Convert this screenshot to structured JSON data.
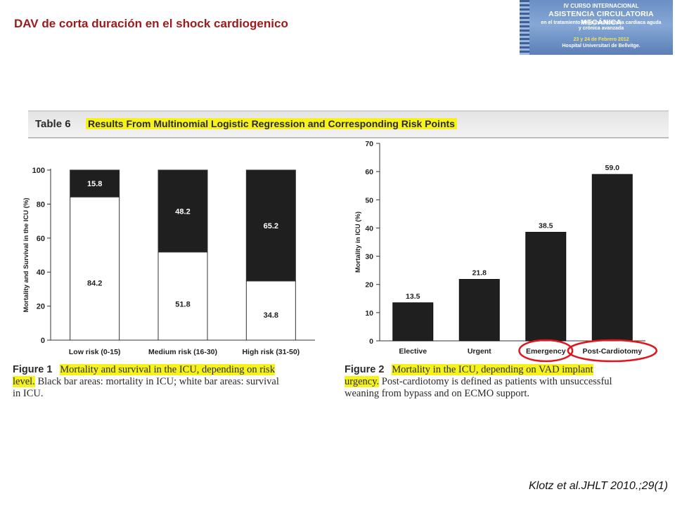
{
  "slide": {
    "title": "DAV de corta duración en el shock cardiogenico",
    "citation": "Klotz et al.JHLT 2010.;29(1)"
  },
  "banner": {
    "line1": "IV CURSO INTERNACIONAL",
    "line2": "ASISTENCIA CIRCULATORIA MECÁNICA",
    "line3": "en el tratamiento de la insuficiencia cardiaca aguda",
    "line4": "y crónica avanzada",
    "line5": "23 y 24 de Febrero 2012",
    "line6": "Hospital Universitari de Bellvitge."
  },
  "table_header": {
    "number": "Table 6",
    "title": "Results From Multinomial Logistic Regression and Corresponding Risk Points"
  },
  "figure1": {
    "label": "Figure 1",
    "caption_highlight_a": "Mortality and survival in the ICU, depending on risk",
    "caption_highlight_b": "level.",
    "caption_rest_a": " Black bar areas: mortality in ICU; white bar areas: survival",
    "caption_rest_b": "in ICU."
  },
  "figure2": {
    "label": "Figure 2",
    "caption_highlight_a": "Mortality in the ICU, depending on VAD implant",
    "caption_highlight_b": "urgency.",
    "caption_rest_a": " Post-cardiotomy is defined as patients with unsuccessful",
    "caption_rest_b": "weaning from bypass and on ECMO support."
  },
  "colors": {
    "title": "#9c1a1a",
    "highlight": "#f6f21a",
    "bar_dark": "#1f1f1f",
    "circle": "#e0161f"
  },
  "chart_data": [
    {
      "type": "bar",
      "stacked": true,
      "ylabel": "Mortality and Survival in the ICU (%)",
      "xlabel": "",
      "ylim": [
        0,
        100
      ],
      "yticks": [
        0,
        20,
        40,
        60,
        80,
        100
      ],
      "categories": [
        "Low risk (0-15)",
        "Medium risk (16-30)",
        "High risk (31-50)"
      ],
      "series": [
        {
          "name": "Survival",
          "color": "#ffffff",
          "values": [
            84.2,
            51.8,
            34.8
          ],
          "labels": [
            "84.2",
            "51.8",
            "34.8"
          ]
        },
        {
          "name": "Mortality",
          "color": "#1f1f1f",
          "values": [
            15.8,
            48.2,
            65.2
          ],
          "labels": [
            "15.8",
            "48.2",
            "65.2"
          ]
        }
      ]
    },
    {
      "type": "bar",
      "ylabel": "Mortality in ICU (%)",
      "xlabel": "",
      "ylim": [
        0,
        70
      ],
      "yticks": [
        0,
        10,
        20,
        30,
        40,
        50,
        60,
        70
      ],
      "categories": [
        "Elective",
        "Urgent",
        "Emergency",
        "Post-Cardiotomy"
      ],
      "values": [
        13.5,
        21.8,
        38.5,
        59.0
      ],
      "labels": [
        "13.5",
        "21.8",
        "38.5",
        "59.0"
      ],
      "circled_categories": [
        "Emergency",
        "Post-Cardiotomy"
      ]
    }
  ]
}
